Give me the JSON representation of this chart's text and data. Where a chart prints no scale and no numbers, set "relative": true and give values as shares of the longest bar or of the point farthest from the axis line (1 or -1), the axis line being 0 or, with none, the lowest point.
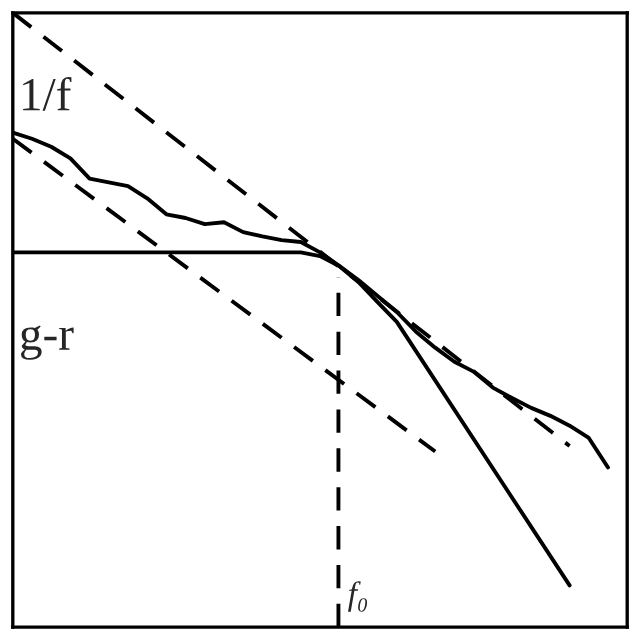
{
  "chart_data": {
    "type": "line",
    "relative": true,
    "categories": [
      null,
      null,
      null,
      null,
      null,
      null,
      null,
      null,
      null,
      null,
      null,
      null,
      null,
      null,
      null,
      null,
      null,
      null,
      null,
      null,
      null,
      null,
      null,
      null,
      null,
      null,
      null,
      null,
      null,
      null,
      null,
      null,
      null
    ],
    "series": [
      {
        "color": "#000000",
        "line_style": "solid",
        "values": [
          0.805,
          0.795,
          0.782,
          0.763,
          0.73,
          0.724,
          0.718,
          0.698,
          0.672,
          0.666,
          0.656,
          0.659,
          0.643,
          0.636,
          0.63,
          0.627,
          0.61,
          0.588,
          0.565,
          0.539,
          0.513,
          0.481,
          0.455,
          0.432,
          0.416,
          0.39,
          0.373,
          0.357,
          0.344,
          0.328,
          0.308,
          0.26,
          null
        ]
      },
      {
        "color": "#000000",
        "line_style": "solid",
        "values": [
          0.61,
          0.61,
          0.61,
          0.61,
          0.61,
          0.61,
          0.61,
          0.61,
          0.61,
          0.61,
          0.61,
          0.61,
          0.61,
          0.61,
          0.61,
          0.61,
          0.604,
          0.588,
          0.562,
          0.529,
          0.497,
          null,
          null,
          null,
          null,
          null,
          null,
          null,
          null,
          0.068,
          null,
          null,
          null
        ]
      },
      {
        "color": "#000000",
        "line_style": "dashed",
        "values": [
          1.0,
          null,
          null,
          null,
          null,
          null,
          null,
          null,
          null,
          null,
          null,
          null,
          null,
          null,
          null,
          null,
          null,
          null,
          null,
          null,
          null,
          null,
          null,
          null,
          null,
          null,
          null,
          null,
          null,
          0.295,
          null,
          null,
          null
        ]
      },
      {
        "color": "#000000",
        "line_style": "dashed",
        "values": [
          0.795,
          null,
          null,
          null,
          null,
          null,
          null,
          null,
          null,
          null,
          null,
          null,
          null,
          null,
          null,
          null,
          null,
          null,
          null,
          null,
          null,
          null,
          0.286,
          null,
          null,
          null,
          null,
          null,
          null,
          null,
          null,
          null,
          null
        ]
      }
    ],
    "annotations": [
      "1/f",
      "g-r",
      "f₀"
    ],
    "grid": false,
    "legend": false,
    "marker": "none"
  }
}
